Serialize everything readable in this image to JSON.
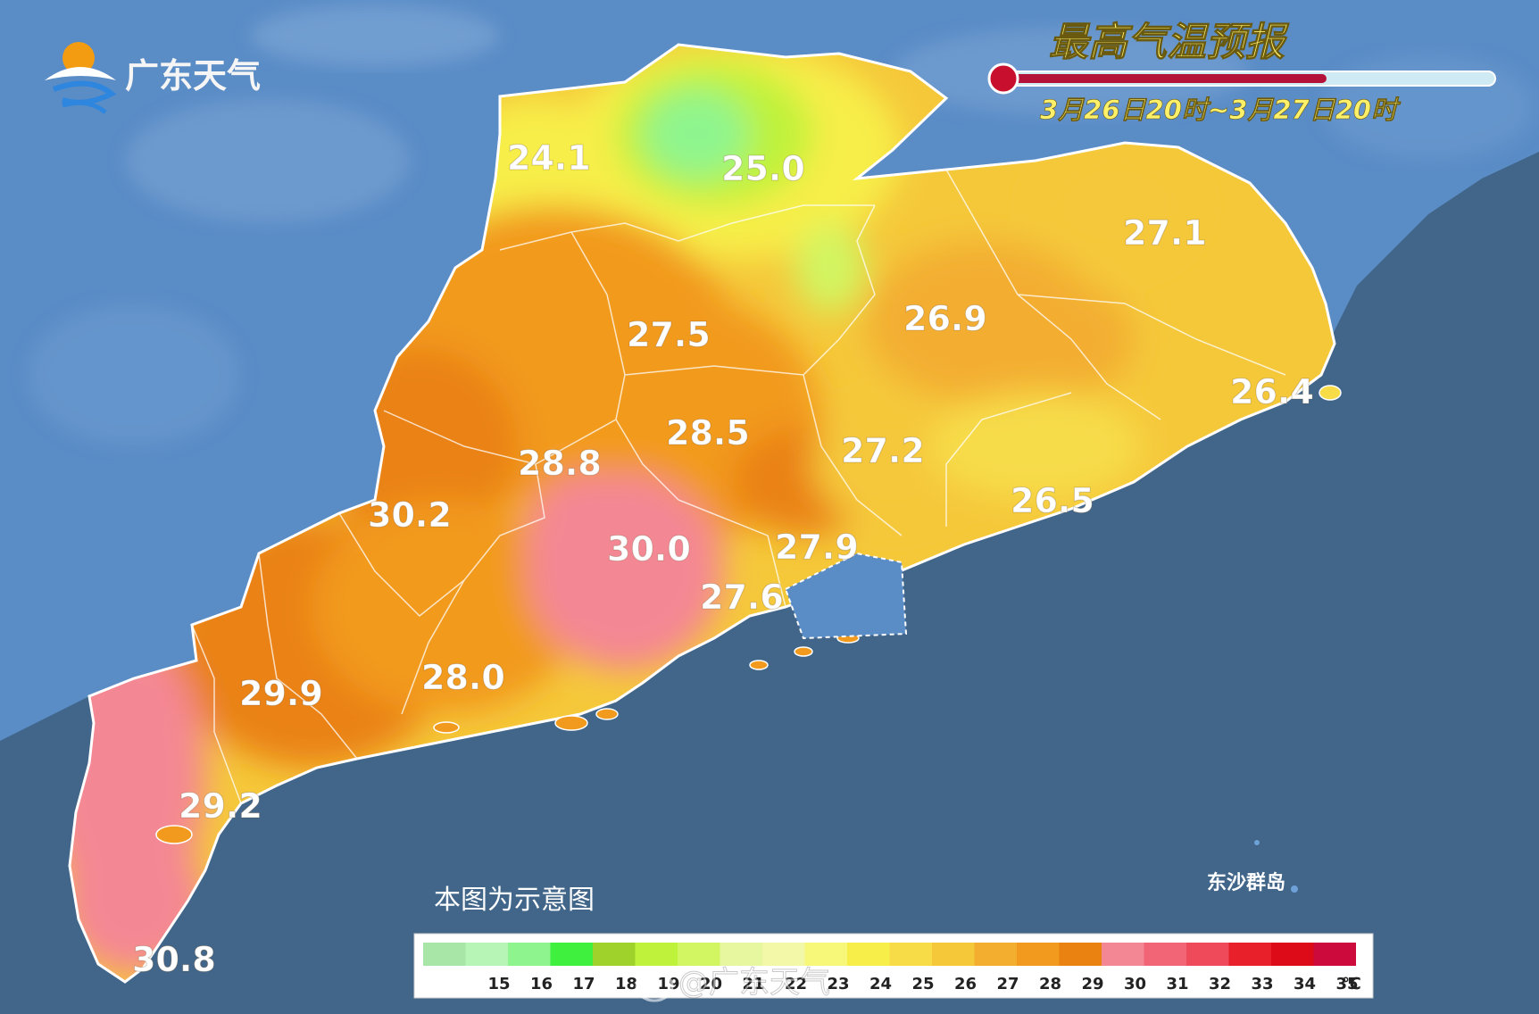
{
  "map": {
    "title": "最高气温预报",
    "period": "3月26日20时~3月27日20时",
    "logo_text": "广东天气",
    "disclaimer": "本图为示意图",
    "island_label": "东沙群岛",
    "watermark": "@广东天气",
    "colors": {
      "sea": "#41668a",
      "land_outside": "#5a8cc6",
      "thermometer_bulb": "#c8102e",
      "thermometer_fill": "#b5123a",
      "thermometer_track": "#cfeaf2"
    },
    "city_values": [
      {
        "name": "shaoguan-north",
        "value": "24.1"
      },
      {
        "name": "shaoguan",
        "value": "25.0"
      },
      {
        "name": "meizhou-north",
        "value": "27.1"
      },
      {
        "name": "heyuan-north",
        "value": "26.9"
      },
      {
        "name": "qingyuan",
        "value": "27.5"
      },
      {
        "name": "chaozhou",
        "value": "26.4"
      },
      {
        "name": "guangzhou",
        "value": "28.5"
      },
      {
        "name": "zhaoqing",
        "value": "28.8"
      },
      {
        "name": "huizhou",
        "value": "27.2"
      },
      {
        "name": "yunfu",
        "value": "30.2"
      },
      {
        "name": "shanwei",
        "value": "26.5"
      },
      {
        "name": "jiangmen",
        "value": "30.0"
      },
      {
        "name": "shenzhen",
        "value": "27.9"
      },
      {
        "name": "zhuhai",
        "value": "27.6"
      },
      {
        "name": "maoming",
        "value": "29.9"
      },
      {
        "name": "yangjiang",
        "value": "28.0"
      },
      {
        "name": "zhanjiang",
        "value": "29.2"
      },
      {
        "name": "xuwen",
        "value": "30.8"
      }
    ],
    "legend": {
      "unit": "℃",
      "bins": [
        {
          "label": "",
          "color": "#a8e6a8"
        },
        {
          "label": "15",
          "color": "#b7f5b7"
        },
        {
          "label": "16",
          "color": "#8ef58e"
        },
        {
          "label": "17",
          "color": "#3ff03f"
        },
        {
          "label": "18",
          "color": "#9fd22a"
        },
        {
          "label": "19",
          "color": "#bff23a"
        },
        {
          "label": "20",
          "color": "#d2f562"
        },
        {
          "label": "21",
          "color": "#e6f7a0"
        },
        {
          "label": "22",
          "color": "#f3f8a8"
        },
        {
          "label": "23",
          "color": "#f7f77a"
        },
        {
          "label": "24",
          "color": "#f7ee4a"
        },
        {
          "label": "25",
          "color": "#f7dc48"
        },
        {
          "label": "26",
          "color": "#f5c83a"
        },
        {
          "label": "27",
          "color": "#f3ae30"
        },
        {
          "label": "28",
          "color": "#f29a1e"
        },
        {
          "label": "29",
          "color": "#ea8212"
        },
        {
          "label": "30",
          "color": "#f48794"
        },
        {
          "label": "31",
          "color": "#f26577"
        },
        {
          "label": "32",
          "color": "#ee4a5a"
        },
        {
          "label": "33",
          "color": "#e8202a"
        },
        {
          "label": "34",
          "color": "#dd0a18"
        },
        {
          "label": "35",
          "color": "#cc0a3c"
        }
      ]
    }
  }
}
